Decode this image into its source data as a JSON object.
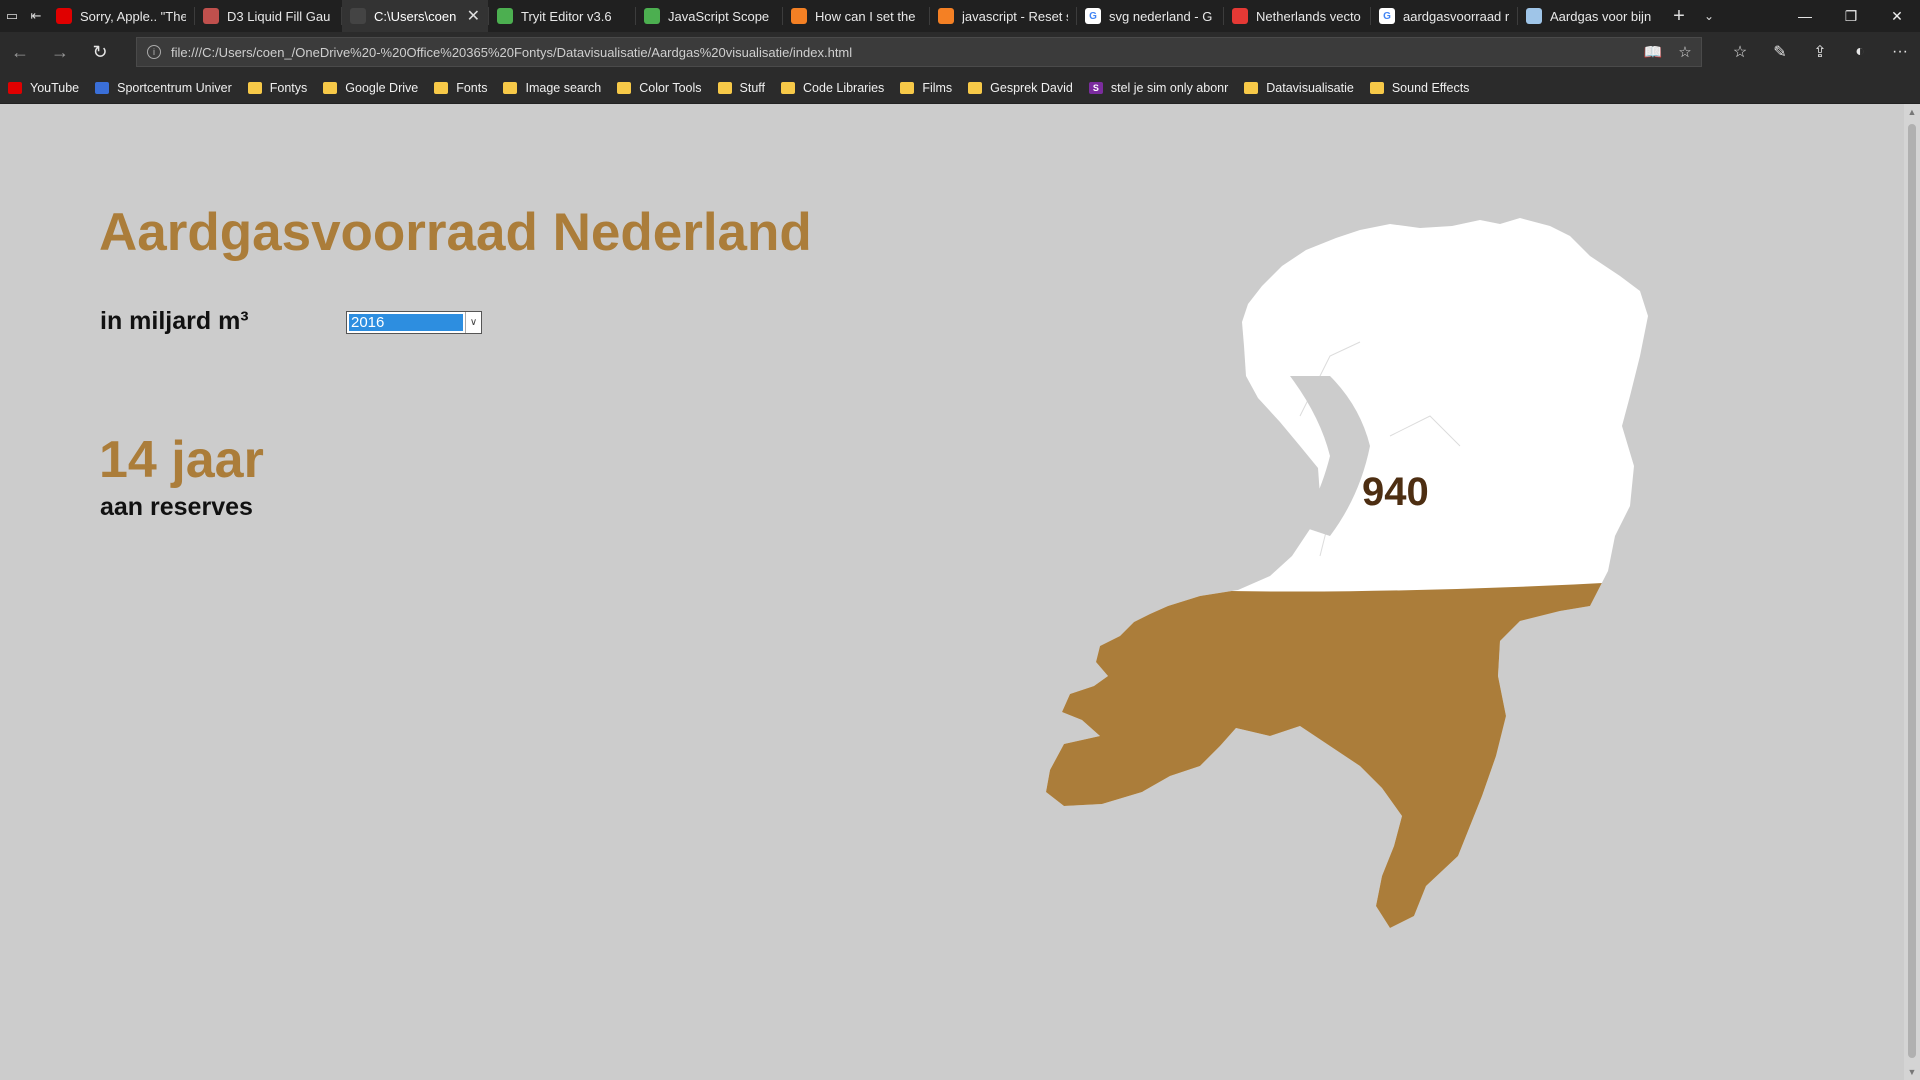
{
  "browser": {
    "tabs": [
      {
        "label": "Sorry, Apple.. \"The",
        "icon": "youtube-icon",
        "color": "#e00000"
      },
      {
        "label": "D3 Liquid Fill Gau",
        "icon": "codepen-icon",
        "color": "#c0504d"
      },
      {
        "label": "C:\\Users\\coen",
        "icon": "page-icon",
        "color": "#444444",
        "active": true
      },
      {
        "label": "Tryit Editor v3.6",
        "icon": "w3schools-icon",
        "color": "#4caf50"
      },
      {
        "label": "JavaScript Scope",
        "icon": "w3schools-icon",
        "color": "#4caf50"
      },
      {
        "label": "How can I set the",
        "icon": "stackoverflow-icon",
        "color": "#f48024"
      },
      {
        "label": "javascript - Reset s",
        "icon": "stackoverflow-icon",
        "color": "#f48024"
      },
      {
        "label": "svg nederland - G",
        "icon": "google-icon",
        "color": "#ffffff"
      },
      {
        "label": "Netherlands vecto",
        "icon": "map-pin-icon",
        "color": "#e53935"
      },
      {
        "label": "aardgasvoorraad r",
        "icon": "google-icon",
        "color": "#ffffff"
      },
      {
        "label": "Aardgas voor bijn",
        "icon": "page-icon",
        "color": "#9fc5e8"
      }
    ],
    "url": "file:///C:/Users/coen_/OneDrive%20-%20Office%20365%20Fontys/Datavisualisatie/Aardgas%20visualisatie/index.html",
    "favorites": [
      {
        "label": "YouTube",
        "icon": "youtube-icon",
        "color": "#e00000"
      },
      {
        "label": "Sportcentrum Univer",
        "icon": "sportcentrum-icon",
        "color": "#3a6fd8"
      },
      {
        "label": "Fontys",
        "icon": "folder-icon",
        "color": "#f7c948"
      },
      {
        "label": "Google Drive",
        "icon": "folder-icon",
        "color": "#f7c948"
      },
      {
        "label": "Fonts",
        "icon": "folder-icon",
        "color": "#f7c948"
      },
      {
        "label": "Image search",
        "icon": "folder-icon",
        "color": "#f7c948"
      },
      {
        "label": "Color Tools",
        "icon": "folder-icon",
        "color": "#f7c948"
      },
      {
        "label": "Stuff",
        "icon": "folder-icon",
        "color": "#f7c948"
      },
      {
        "label": "Code Libraries",
        "icon": "folder-icon",
        "color": "#f7c948"
      },
      {
        "label": "Films",
        "icon": "folder-icon",
        "color": "#f7c948"
      },
      {
        "label": "Gesprek David",
        "icon": "folder-icon",
        "color": "#f7c948"
      },
      {
        "label": "stel je sim only abonr",
        "icon": "onenote-icon",
        "color": "#7b2c9e"
      },
      {
        "label": "Datavisualisatie",
        "icon": "folder-icon",
        "color": "#f7c948"
      },
      {
        "label": "Sound Effects",
        "icon": "folder-icon",
        "color": "#f7c948"
      }
    ]
  },
  "page": {
    "title": "Aardgasvoorraad Nederland",
    "unit_label": "in miljard m³",
    "year_select": {
      "value": "2016"
    },
    "years_value": "14 jaar",
    "years_caption": "aan reserves",
    "map_value": "940",
    "fill_level": 0.48,
    "colors": {
      "accent": "#ab7d3a",
      "fill": "#ab7d3a",
      "map_empty": "#ffffff",
      "background": "#cccccc",
      "value_text": "#4d2e12"
    }
  }
}
